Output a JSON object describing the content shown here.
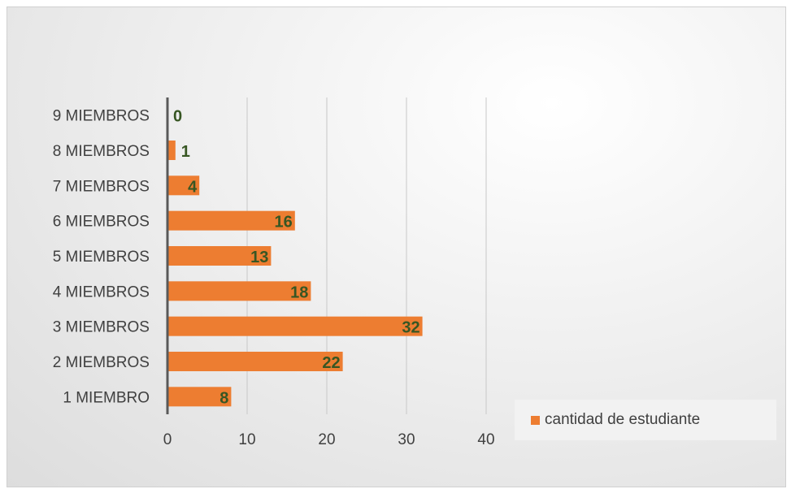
{
  "chart_data": {
    "type": "bar",
    "orientation": "horizontal",
    "categories": [
      "1  MIEMBRO",
      "2 MIEMBROS",
      "3 MIEMBROS",
      "4 MIEMBROS",
      "5 MIEMBROS",
      "6 MIEMBROS",
      "7 MIEMBROS",
      "8 MIEMBROS",
      "9 MIEMBROS"
    ],
    "series": [
      {
        "name": "cantidad de estudiante",
        "values": [
          8,
          22,
          32,
          18,
          13,
          16,
          4,
          1,
          0
        ],
        "color": "#ed7d31"
      }
    ],
    "xlim": [
      0,
      40
    ],
    "xticks": [
      "0",
      "10",
      "20",
      "30",
      "40"
    ],
    "grid": true,
    "legend_position": "bottom-right",
    "data_label_color": "#375623"
  }
}
